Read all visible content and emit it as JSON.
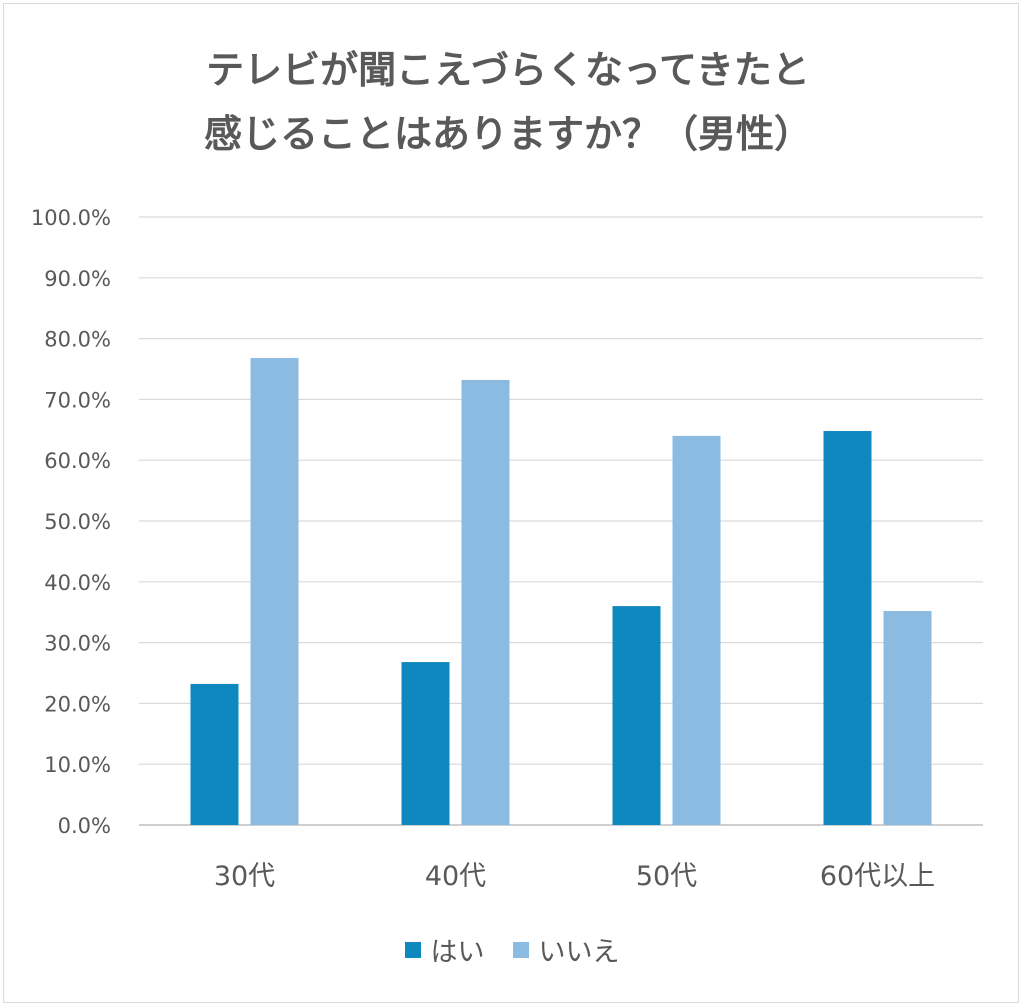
{
  "chart_data": {
    "type": "bar",
    "title_lines": [
      "テレビが聞こえづらくなってきたと",
      "感じることはありますか？（男性）"
    ],
    "categories": [
      "30代",
      "40代",
      "50代",
      "60代以上"
    ],
    "series": [
      {
        "name": "はい",
        "color": "#0f88bf",
        "values": [
          23.2,
          26.8,
          36.0,
          64.8
        ]
      },
      {
        "name": "いいえ",
        "color": "#8bbbe1",
        "values": [
          76.8,
          73.2,
          64.0,
          35.2
        ]
      }
    ],
    "ylim": [
      0,
      100
    ],
    "y_ticks": [
      "0.0%",
      "10.0%",
      "20.0%",
      "30.0%",
      "40.0%",
      "50.0%",
      "60.0%",
      "70.0%",
      "80.0%",
      "90.0%",
      "100.0%"
    ],
    "grid": true,
    "legend_position": "bottom",
    "xlabel": "",
    "ylabel": ""
  }
}
